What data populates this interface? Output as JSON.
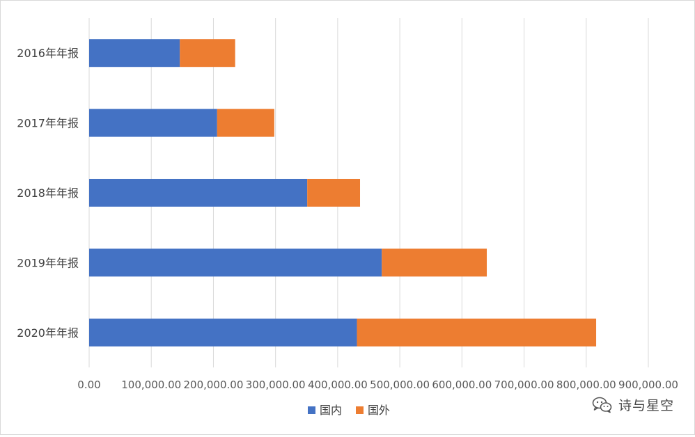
{
  "chart_data": {
    "type": "bar",
    "orientation": "horizontal",
    "stacked": true,
    "categories": [
      "2016年年报",
      "2017年年报",
      "2018年年报",
      "2019年年报",
      "2020年年报"
    ],
    "series": [
      {
        "name": "国内",
        "color": "#4472C4",
        "values": [
          146000,
          206000,
          351000,
          471000,
          431000
        ]
      },
      {
        "name": "国外",
        "color": "#ED7D31",
        "values": [
          89000,
          92000,
          85000,
          169000,
          385000
        ]
      }
    ],
    "xlim": [
      0,
      900000
    ],
    "x_ticks": [
      0,
      100000,
      200000,
      300000,
      400000,
      500000,
      600000,
      700000,
      800000,
      900000
    ],
    "x_tick_labels": [
      "0.00",
      "100,000.00",
      "200,000.00",
      "300,000.00",
      "400,000.00",
      "500,000.00",
      "600,000.00",
      "700,000.00",
      "800,000.00",
      "900,000.00"
    ],
    "grid": true,
    "legend_position": "bottom"
  },
  "watermark": {
    "text": "诗与星空",
    "icon": "wechat-icon"
  }
}
